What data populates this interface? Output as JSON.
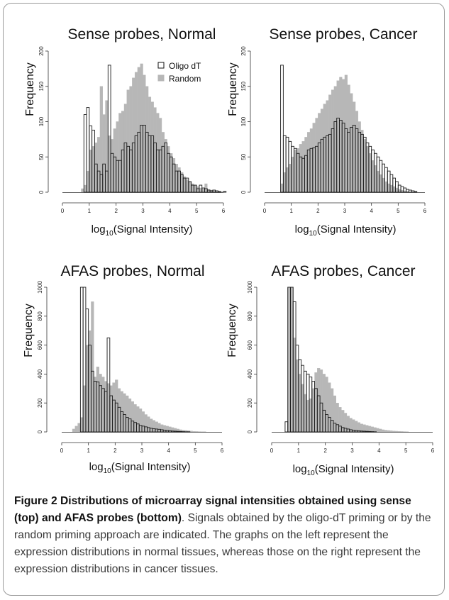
{
  "caption": {
    "label": "Figure 2",
    "title": "Distributions of microarray signal intensities obtained using sense (top) and AFAS probes (bottom)",
    "text": ". Signals obtained by the oligo-dT priming or by the random priming approach are indicated. The graphs on the left represent the expression distributions in normal tissues, whereas those on the right represent the expression distributions in cancer tissues."
  },
  "colors": {
    "random": "#b7b7b7",
    "oligo": "#1a1a1a",
    "axis": "#333333"
  },
  "chart_data": [
    {
      "type": "histogram",
      "title": "Sense probes, Normal",
      "xlabel": "log10(Signal Intensity)",
      "ylabel": "Frequency",
      "xlim": [
        0,
        6
      ],
      "ylim": [
        0,
        200
      ],
      "xticks": [
        0,
        1,
        2,
        3,
        4,
        5,
        6
      ],
      "yticks": [
        0,
        50,
        100,
        150,
        200
      ],
      "bin_width": 0.1,
      "legend": {
        "position": "top-right",
        "entries": [
          "Oligo dT",
          "Random"
        ]
      },
      "series": [
        {
          "name": "Oligo dT",
          "bin_start": 0.7,
          "values": [
            0,
            110,
            120,
            94,
            88,
            40,
            30,
            25,
            40,
            30,
            180,
            55,
            50,
            45,
            45,
            60,
            70,
            65,
            60,
            70,
            80,
            85,
            95,
            95,
            85,
            80,
            80,
            70,
            60,
            60,
            65,
            70,
            55,
            50,
            40,
            30,
            30,
            25,
            20,
            20,
            15,
            10,
            10,
            5,
            10,
            6,
            5,
            3,
            2,
            3,
            2,
            1,
            0,
            1,
            0
          ]
        },
        {
          "name": "Random",
          "bin_start": 0.7,
          "values": [
            5,
            10,
            30,
            60,
            65,
            70,
            78,
            150,
            110,
            130,
            80,
            75,
            90,
            100,
            112,
            115,
            125,
            145,
            150,
            162,
            170,
            177,
            182,
            166,
            150,
            135,
            128,
            120,
            112,
            105,
            85,
            75,
            65,
            55,
            48,
            40,
            35,
            28,
            22,
            18,
            15,
            12,
            10,
            8,
            6,
            5,
            12,
            4,
            3,
            2,
            1,
            1,
            1,
            0,
            0
          ]
        }
      ]
    },
    {
      "type": "histogram",
      "title": "Sense probes, Cancer",
      "xlabel": "log10(Signal Intensity)",
      "ylabel": "Frequency",
      "xlim": [
        0,
        6
      ],
      "ylim": [
        0,
        200
      ],
      "xticks": [
        0,
        1,
        2,
        3,
        4,
        5,
        6
      ],
      "yticks": [
        0,
        50,
        100,
        150,
        200
      ],
      "bin_width": 0.1,
      "series": [
        {
          "name": "Oligo dT",
          "bin_start": 0.6,
          "values": [
            180,
            80,
            78,
            72,
            65,
            62,
            55,
            50,
            48,
            52,
            60,
            62,
            63,
            65,
            70,
            75,
            78,
            80,
            82,
            90,
            100,
            105,
            102,
            98,
            90,
            85,
            92,
            95,
            90,
            85,
            82,
            78,
            70,
            65,
            60,
            55,
            50,
            45,
            40,
            35,
            30,
            25,
            20,
            15,
            10,
            8,
            6,
            4,
            3,
            2,
            1
          ]
        },
        {
          "name": "Random",
          "bin_start": 0.6,
          "values": [
            12,
            28,
            35,
            40,
            50,
            60,
            62,
            68,
            72,
            78,
            85,
            90,
            98,
            105,
            112,
            118,
            125,
            130,
            138,
            145,
            150,
            158,
            163,
            160,
            166,
            152,
            140,
            128,
            115,
            100,
            88,
            75,
            65,
            55,
            45,
            38,
            30,
            25,
            20,
            15,
            12,
            10,
            8,
            6,
            4,
            3,
            2,
            1,
            0,
            0,
            0
          ]
        }
      ]
    },
    {
      "type": "histogram",
      "title": "AFAS probes, Normal",
      "xlabel": "log10(Signal Intensity)",
      "ylabel": "Frequency",
      "xlim": [
        0,
        6
      ],
      "ylim": [
        0,
        1000
      ],
      "xticks": [
        0,
        1,
        2,
        3,
        4,
        5,
        6
      ],
      "yticks": [
        0,
        200,
        400,
        600,
        800,
        1000
      ],
      "bin_width": 0.1,
      "series": [
        {
          "name": "Oligo dT",
          "bin_start": 0.7,
          "values": [
            1000,
            1000,
            850,
            600,
            420,
            350,
            345,
            320,
            300,
            280,
            650,
            250,
            220,
            200,
            170,
            140,
            120,
            100,
            90,
            75,
            65,
            55,
            45,
            40,
            35,
            30,
            25,
            22,
            20,
            18,
            15,
            12,
            10,
            8,
            6,
            5,
            4,
            3,
            2,
            1,
            1,
            0
          ]
        },
        {
          "name": "Random",
          "bin_start": 0.4,
          "values": [
            20,
            40,
            60,
            100,
            320,
            600,
            700,
            900,
            380,
            450,
            400,
            380,
            350,
            335,
            320,
            340,
            360,
            300,
            280,
            265,
            250,
            230,
            210,
            190,
            175,
            160,
            140,
            120,
            105,
            90,
            80,
            70,
            60,
            50,
            45,
            40,
            35,
            30,
            25,
            20,
            15,
            12,
            10,
            8,
            6,
            4,
            3,
            2,
            1,
            1
          ]
        }
      ]
    },
    {
      "type": "histogram",
      "title": "AFAS probes, Cancer",
      "xlabel": "log10(Signal Intensity)",
      "ylabel": "Frequency",
      "xlim": [
        0,
        6
      ],
      "ylim": [
        0,
        1000
      ],
      "xticks": [
        0,
        1,
        2,
        3,
        4,
        5,
        6
      ],
      "yticks": [
        0,
        200,
        400,
        600,
        800,
        1000
      ],
      "bin_width": 0.1,
      "series": [
        {
          "name": "Oligo dT",
          "bin_start": 0.5,
          "values": [
            70,
            1000,
            1000,
            900,
            600,
            500,
            460,
            420,
            400,
            380,
            350,
            300,
            250,
            200,
            150,
            120,
            100,
            80,
            60,
            50,
            40,
            30,
            25,
            20,
            15,
            12,
            10,
            8,
            6,
            5,
            4,
            3,
            2,
            1
          ]
        },
        {
          "name": "Random",
          "bin_start": 0.6,
          "values": [
            1000,
            1000,
            650,
            500,
            400,
            330,
            260,
            220,
            230,
            300,
            410,
            440,
            430,
            400,
            380,
            340,
            300,
            250,
            200,
            170,
            150,
            130,
            110,
            95,
            85,
            75,
            65,
            55,
            50,
            45,
            40,
            35,
            30,
            25,
            20,
            15,
            12,
            10,
            8,
            6,
            5,
            4,
            3,
            2,
            1
          ]
        }
      ]
    }
  ]
}
